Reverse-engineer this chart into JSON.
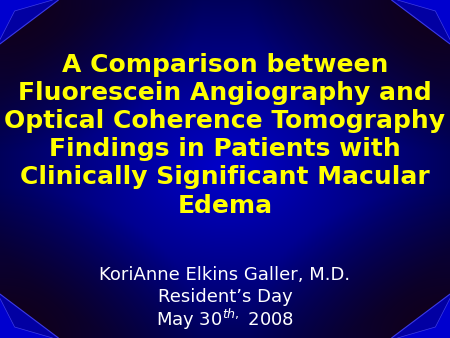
{
  "title_lines": [
    "A Comparison between",
    "Fluorescein Angiography and",
    "Optical Coherence Tomography",
    "Findings in Patients with",
    "Clinically Significant Macular",
    "Edema"
  ],
  "subtitle_line1": "KoriAnne Elkins Galler, M.D.",
  "subtitle_line2": "Resident’s Day",
  "subtitle_line3": "May 30$^{th,}$ 2008",
  "title_color": "#FFFF00",
  "subtitle_color": "#FFFFFF",
  "bg_center_color": "#0000CC",
  "title_fontsize": 18,
  "subtitle_fontsize": 13,
  "fig_width": 4.5,
  "fig_height": 3.38,
  "dpi": 100
}
